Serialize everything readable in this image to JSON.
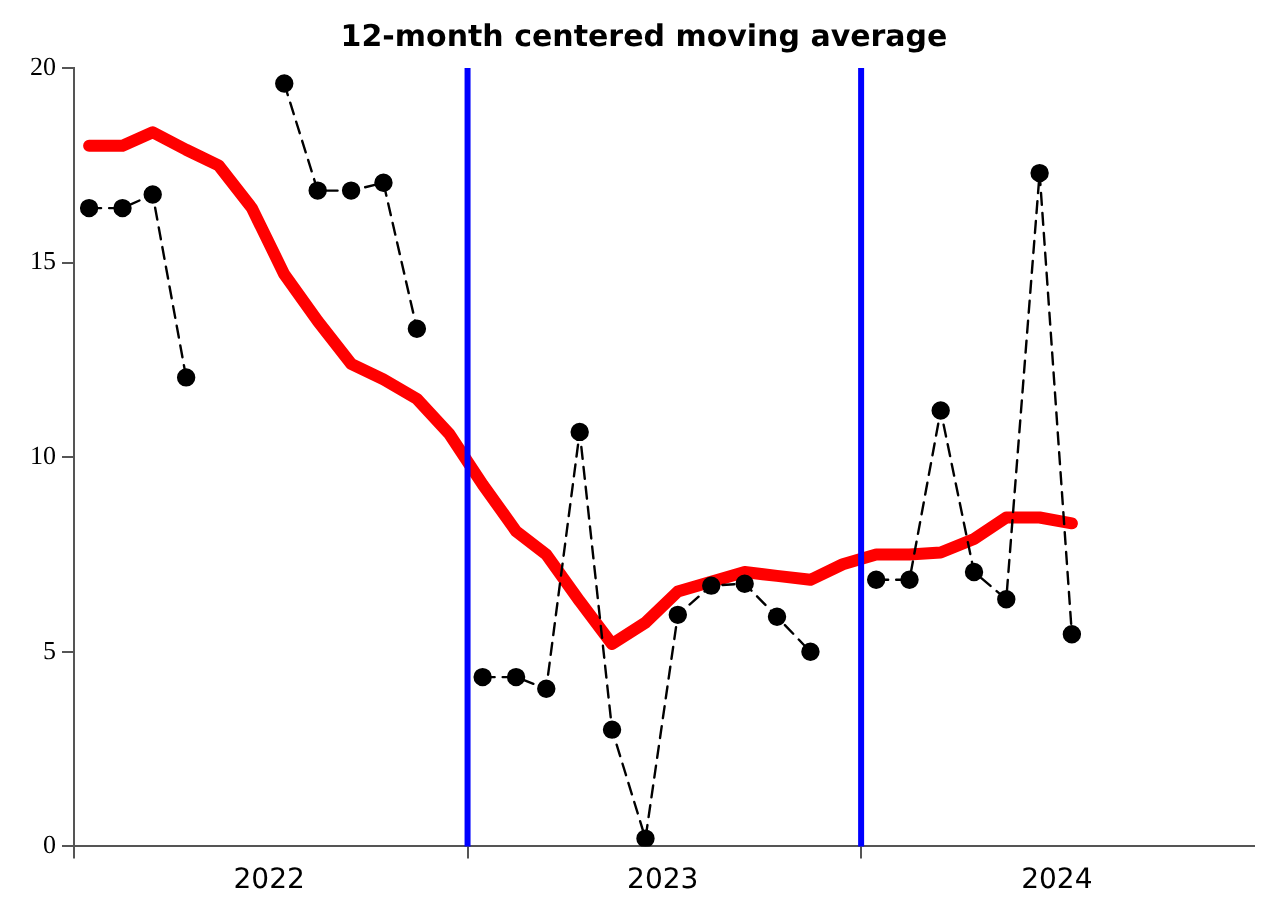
{
  "chart_data": {
    "type": "line",
    "title": "12-month centered moving average",
    "x": [
      "2022-01-15",
      "2022-02-15",
      "2022-03-15",
      "2022-04-15",
      "2022-05-15",
      "2022-06-15",
      "2022-07-15",
      "2022-08-15",
      "2022-09-15",
      "2022-10-15",
      "2022-11-15",
      "2022-12-15",
      "2023-01-15",
      "2023-02-15",
      "2023-03-15",
      "2023-04-15",
      "2023-05-15",
      "2023-06-15",
      "2023-07-15",
      "2023-08-15",
      "2023-09-15",
      "2023-10-15",
      "2023-11-15",
      "2023-12-15",
      "2024-01-15",
      "2024-02-15",
      "2024-03-15",
      "2024-04-15",
      "2024-05-15",
      "2024-06-15",
      "2024-07-15"
    ],
    "series": [
      {
        "color": "#000000",
        "marker": "circle",
        "line_style": "dashed",
        "values": [
          16.4,
          16.4,
          16.75,
          12.05,
          null,
          null,
          19.6,
          16.85,
          16.85,
          17.05,
          13.3,
          null,
          4.35,
          4.35,
          4.05,
          10.65,
          3.0,
          0.2,
          5.95,
          6.7,
          6.75,
          5.9,
          5.0,
          null,
          6.85,
          6.85,
          11.2,
          7.05,
          6.35,
          17.3,
          5.45
        ]
      },
      {
        "color": "#ff0000",
        "marker": "none",
        "line_style": "solid",
        "values": [
          18.0,
          18.0,
          18.35,
          17.9,
          17.5,
          16.4,
          14.7,
          13.5,
          12.4,
          12.0,
          11.5,
          10.6,
          9.3,
          8.1,
          7.5,
          6.3,
          5.2,
          5.75,
          6.55,
          6.8,
          7.05,
          6.95,
          6.85,
          7.25,
          7.5,
          7.5,
          7.55,
          7.9,
          8.45,
          8.45,
          8.3
        ]
      }
    ],
    "xlim": [
      "2022-01-01",
      "2024-12-31"
    ],
    "xticks": [
      {
        "value": "2022-01-01",
        "label": null
      },
      {
        "value": "2022-07-01",
        "label": "2022"
      },
      {
        "value": "2023-01-01",
        "label": null
      },
      {
        "value": "2023-07-01",
        "label": "2023"
      },
      {
        "value": "2024-01-01",
        "label": null
      },
      {
        "value": "2024-07-01",
        "label": "2024"
      }
    ],
    "ylim": [
      0,
      20
    ],
    "yticks": [
      0,
      5,
      10,
      15,
      20
    ],
    "ref_lines": [
      {
        "axis": "x",
        "value": "2023-01-01",
        "color": "#0000ff"
      },
      {
        "axis": "x",
        "value": "2024-01-01",
        "color": "#0000ff"
      }
    ],
    "grid": false,
    "legend": false
  }
}
